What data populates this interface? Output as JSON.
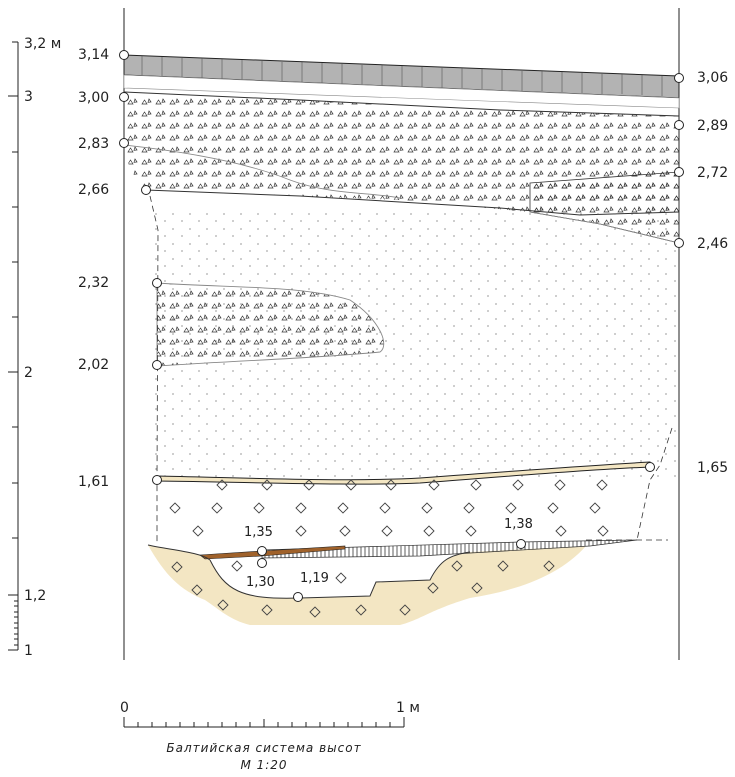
{
  "scale_bar_left": {
    "unit_label": "3,2 м",
    "ticks": [
      "3",
      "2",
      "1,2",
      "1"
    ]
  },
  "elevations_left": [
    "3,14",
    "3,00",
    "2,83",
    "2,66",
    "2,32",
    "2,02",
    "1,61"
  ],
  "elevations_right": [
    "3,06",
    "2,89",
    "2,72",
    "2,46",
    "1,65"
  ],
  "elevations_inner": [
    "1,35",
    "1,38",
    "1,30",
    "1,19"
  ],
  "scale_bar_bottom": {
    "start_label": "0",
    "end_label": "1 м",
    "caption": "Балтийская система высот",
    "scale": "М 1:20"
  },
  "colors": {
    "asphalt": "#b3b3b3",
    "sand": "#f3e6c3",
    "wood": "#a0622b",
    "line": "#222222"
  }
}
